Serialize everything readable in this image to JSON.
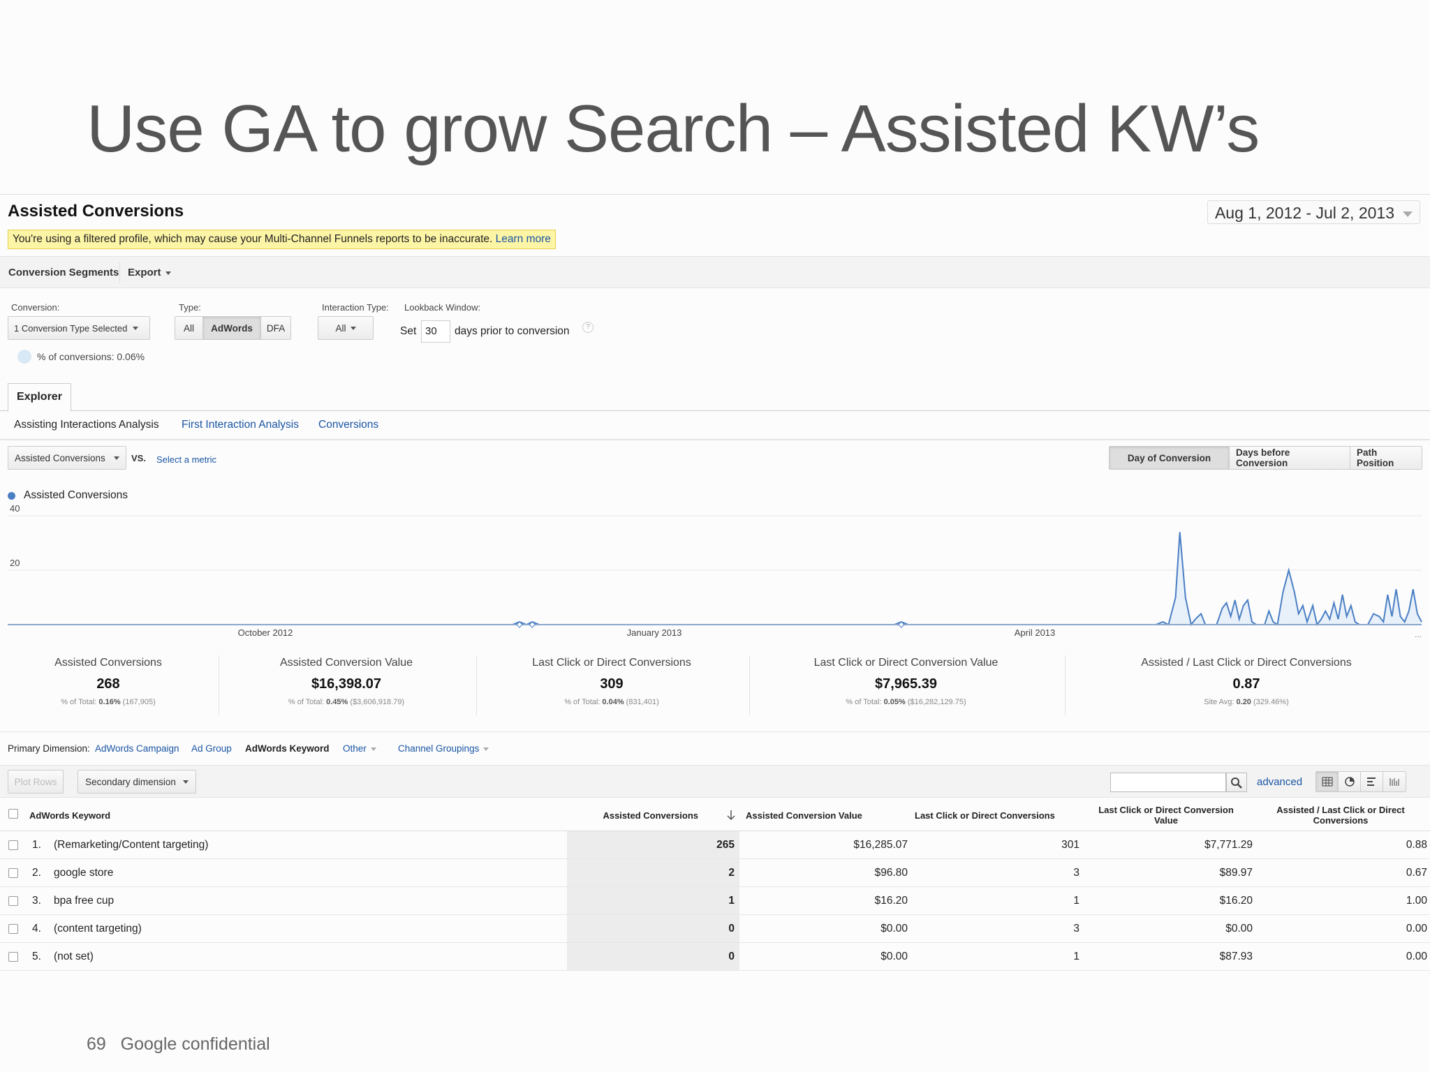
{
  "slide": {
    "title": "Use GA to grow Search – Assisted KW’s",
    "footer_page": "69",
    "footer_text": "Google confidential"
  },
  "report": {
    "title": "Assisted Conversions",
    "date_range": "Aug 1, 2012 - Jul 2, 2013",
    "warning_text": "You're using a filtered profile, which may cause your Multi-Channel Funnels reports to be inaccurate.",
    "warning_link": "Learn more"
  },
  "toolbar": {
    "segments_label": "Conversion Segments",
    "export_label": "Export"
  },
  "filters": {
    "conversion_label": "Conversion:",
    "conversion_value": "1 Conversion Type Selected",
    "conversion_pct": "% of conversions: 0.06%",
    "type_label": "Type:",
    "type_options": [
      "All",
      "AdWords",
      "DFA"
    ],
    "type_selected": "AdWords",
    "interaction_label": "Interaction Type:",
    "interaction_value": "All",
    "lookback_label": "Lookback Window:",
    "lookback_prefix": "Set",
    "lookback_days": "30",
    "lookback_suffix": "days prior to conversion",
    "help_glyph": "?"
  },
  "tabs": {
    "explorer": "Explorer",
    "subtabs": [
      "Assisting Interactions Analysis",
      "First Interaction Analysis",
      "Conversions"
    ]
  },
  "metric_bar": {
    "metric": "Assisted Conversions",
    "vs": "VS.",
    "select_metric": "Select a metric",
    "views": [
      "Day of Conversion",
      "Days before Conversion",
      "Path Position"
    ],
    "active_view": "Day of Conversion"
  },
  "chart_data": {
    "type": "area",
    "series": [
      {
        "name": "Assisted Conversions",
        "color": "#4a7fc4"
      }
    ],
    "ytick_labels": [
      "40",
      "20"
    ],
    "ylim": [
      0,
      40
    ],
    "x_tick_labels": [
      "October 2012",
      "January 2013",
      "April 2013"
    ],
    "x_more": "...",
    "points": [
      [
        0,
        0
      ],
      [
        0.357,
        0
      ],
      [
        0.362,
        1
      ],
      [
        0.367,
        0
      ],
      [
        0.371,
        1
      ],
      [
        0.376,
        0
      ],
      [
        0.627,
        0
      ],
      [
        0.632,
        1
      ],
      [
        0.637,
        0
      ],
      [
        0.812,
        0
      ],
      [
        0.817,
        1
      ],
      [
        0.821,
        0
      ],
      [
        0.826,
        10
      ],
      [
        0.829,
        34
      ],
      [
        0.833,
        10
      ],
      [
        0.837,
        0
      ],
      [
        0.84,
        2
      ],
      [
        0.844,
        4
      ],
      [
        0.847,
        0
      ],
      [
        0.855,
        0
      ],
      [
        0.859,
        6
      ],
      [
        0.862,
        8
      ],
      [
        0.865,
        3
      ],
      [
        0.868,
        9
      ],
      [
        0.871,
        2
      ],
      [
        0.874,
        7
      ],
      [
        0.877,
        9
      ],
      [
        0.88,
        1
      ],
      [
        0.883,
        0
      ],
      [
        0.889,
        0
      ],
      [
        0.892,
        5
      ],
      [
        0.895,
        1
      ],
      [
        0.898,
        0
      ],
      [
        0.902,
        12
      ],
      [
        0.906,
        20
      ],
      [
        0.91,
        12
      ],
      [
        0.913,
        4
      ],
      [
        0.916,
        7
      ],
      [
        0.919,
        1
      ],
      [
        0.923,
        7
      ],
      [
        0.926,
        0
      ],
      [
        0.929,
        2
      ],
      [
        0.932,
        5
      ],
      [
        0.935,
        2
      ],
      [
        0.938,
        8
      ],
      [
        0.941,
        2
      ],
      [
        0.944,
        11
      ],
      [
        0.947,
        3
      ],
      [
        0.95,
        7
      ],
      [
        0.953,
        1
      ],
      [
        0.956,
        0
      ],
      [
        0.962,
        0
      ],
      [
        0.966,
        4
      ],
      [
        0.97,
        3
      ],
      [
        0.973,
        1
      ],
      [
        0.976,
        11
      ],
      [
        0.979,
        3
      ],
      [
        0.982,
        13
      ],
      [
        0.985,
        3
      ],
      [
        0.988,
        1
      ],
      [
        0.991,
        5
      ],
      [
        0.994,
        13
      ],
      [
        0.997,
        4
      ],
      [
        1.0,
        1
      ]
    ]
  },
  "scorecards": [
    {
      "title": "Assisted Conversions",
      "value": "268",
      "sub_prefix": "% of Total: ",
      "sub_bold": "0.16%",
      "sub_rest": " (167,905)"
    },
    {
      "title": "Assisted Conversion Value",
      "value": "$16,398.07",
      "sub_prefix": "% of Total: ",
      "sub_bold": "0.45%",
      "sub_rest": " ($3,606,918.79)"
    },
    {
      "title": "Last Click or Direct Conversions",
      "value": "309",
      "sub_prefix": "% of Total: ",
      "sub_bold": "0.04%",
      "sub_rest": " (831,401)"
    },
    {
      "title": "Last Click or Direct Conversion Value",
      "value": "$7,965.39",
      "sub_prefix": "% of Total: ",
      "sub_bold": "0.05%",
      "sub_rest": " ($16,282,129.75)"
    },
    {
      "title": "Assisted / Last Click or Direct Conversions",
      "value": "0.87",
      "sub_prefix": "Site Avg: ",
      "sub_bold": "0.20",
      "sub_rest": " (329.46%)"
    }
  ],
  "dimensions": {
    "label": "Primary Dimension:",
    "items": [
      "AdWords Campaign",
      "Ad Group",
      "AdWords Keyword",
      "Other",
      "Channel Groupings"
    ],
    "active": "AdWords Keyword"
  },
  "table_controls": {
    "plot_rows": "Plot Rows",
    "secondary_dimension": "Secondary dimension",
    "search_placeholder": "",
    "advanced": "advanced"
  },
  "table": {
    "headers": [
      "AdWords Keyword",
      "Assisted Conversions",
      "Assisted Conversion Value",
      "Last Click or Direct Conversions",
      "Last Click or Direct Conversion Value",
      "Assisted / Last Click or Direct Conversions"
    ],
    "rows": [
      {
        "idx": "1.",
        "keyword": "(Remarketing/Content targeting)",
        "assisted": "265",
        "assisted_value": "$16,285.07",
        "last_click": "301",
        "last_value": "$7,771.29",
        "ratio": "0.88"
      },
      {
        "idx": "2.",
        "keyword": "google store",
        "assisted": "2",
        "assisted_value": "$96.80",
        "last_click": "3",
        "last_value": "$89.97",
        "ratio": "0.67"
      },
      {
        "idx": "3.",
        "keyword": "bpa free cup",
        "assisted": "1",
        "assisted_value": "$16.20",
        "last_click": "1",
        "last_value": "$16.20",
        "ratio": "1.00"
      },
      {
        "idx": "4.",
        "keyword": "(content targeting)",
        "assisted": "0",
        "assisted_value": "$0.00",
        "last_click": "3",
        "last_value": "$0.00",
        "ratio": "0.00"
      },
      {
        "idx": "5.",
        "keyword": "(not set)",
        "assisted": "0",
        "assisted_value": "$0.00",
        "last_click": "1",
        "last_value": "$87.93",
        "ratio": "0.00"
      }
    ]
  }
}
